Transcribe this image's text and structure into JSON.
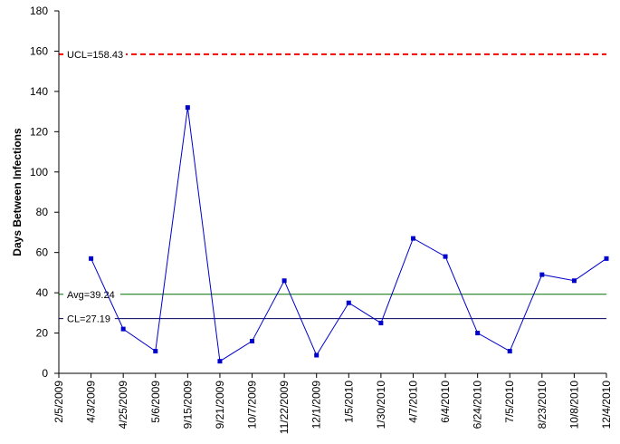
{
  "chart_data": {
    "type": "line",
    "title": "",
    "xlabel": "",
    "ylabel": "Days Between Infections",
    "ylim": [
      0,
      180
    ],
    "yticks": [
      0,
      20,
      40,
      60,
      80,
      100,
      120,
      140,
      160,
      180
    ],
    "grid": false,
    "categories": [
      "2/5/2009",
      "4/3/2009",
      "4/25/2009",
      "5/6/2009",
      "9/15/2009",
      "9/21/2009",
      "10/7/2009",
      "11/22/2009",
      "12/1/2009",
      "1/5/2010",
      "1/30/2010",
      "4/7/2010",
      "6/4/2010",
      "6/24/2010",
      "7/5/2010",
      "8/23/2010",
      "10/8/2010",
      "12/4/2010"
    ],
    "series": [
      {
        "color": "#0000cc",
        "values": [
          null,
          57,
          22,
          11,
          132,
          6,
          16,
          46,
          9,
          35,
          25,
          67,
          58,
          20,
          11,
          49,
          46,
          57
        ]
      }
    ],
    "reference_lines": [
      {
        "label": "UCL=158.43",
        "value": 158.43,
        "color": "#ff0000",
        "style": "dashed"
      },
      {
        "label": "Avg=39.24",
        "value": 39.24,
        "color": "#007000",
        "style": "solid"
      },
      {
        "label": "CL=27.19",
        "value": 27.19,
        "color": "#000060",
        "style": "solid"
      }
    ]
  }
}
